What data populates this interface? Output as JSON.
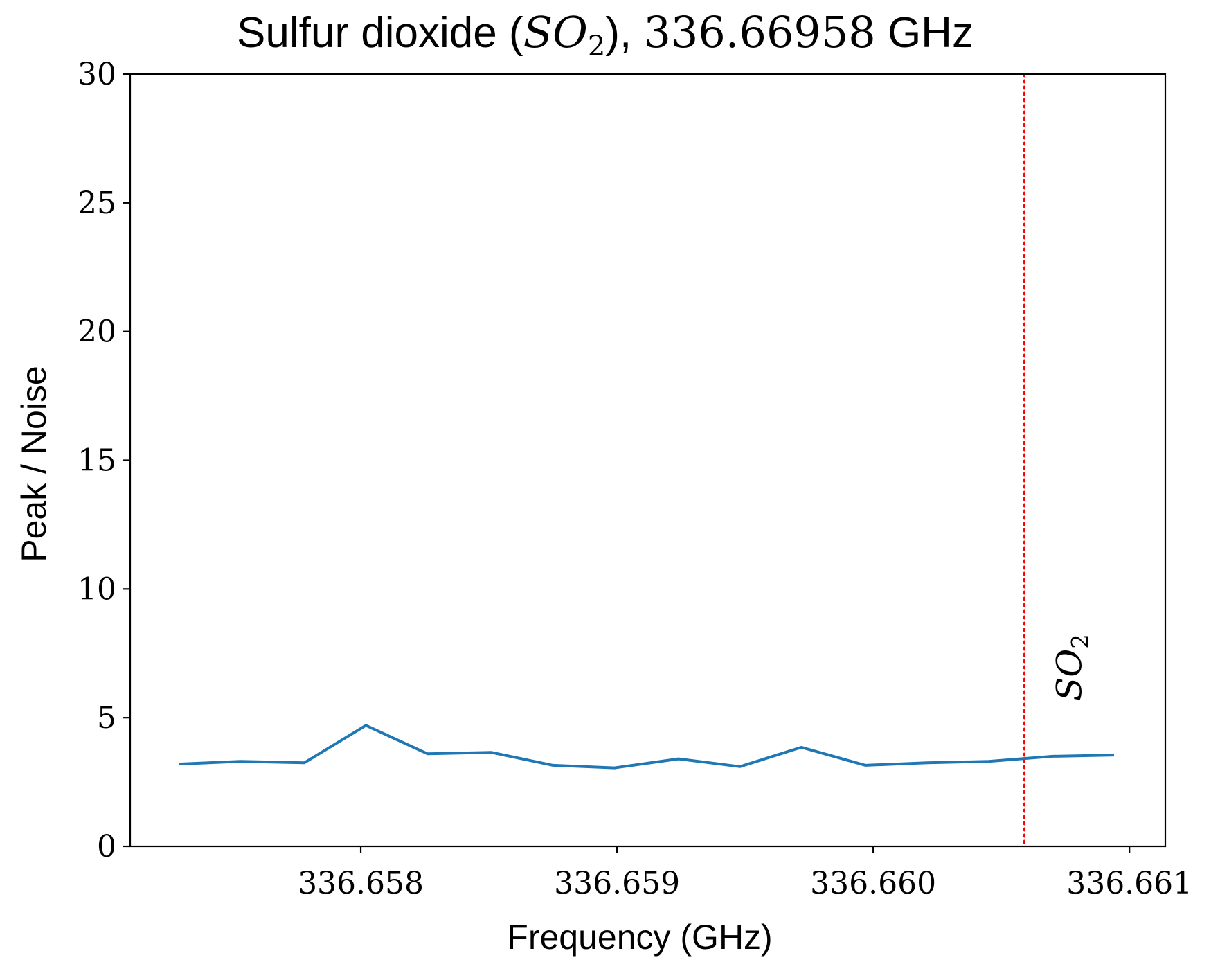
{
  "chart_data": {
    "type": "line",
    "title": {
      "prefix": "Sulfur dioxide (",
      "species": "SO",
      "species_sub": "2",
      "middle": "), ",
      "frequency": "336.66958",
      "suffix": " GHz"
    },
    "xlabel": "Frequency (GHz)",
    "ylabel": "Peak / Noise",
    "xlim": [
      336.6571,
      336.66114
    ],
    "ylim": [
      0,
      30
    ],
    "x_ticks": [
      {
        "value": 336.658,
        "label": "336.658"
      },
      {
        "value": 336.659,
        "label": "336.659"
      },
      {
        "value": 336.66,
        "label": "336.660"
      },
      {
        "value": 336.661,
        "label": "336.661"
      }
    ],
    "y_ticks": [
      {
        "value": 0,
        "label": "0"
      },
      {
        "value": 5,
        "label": "5"
      },
      {
        "value": 10,
        "label": "10"
      },
      {
        "value": 15,
        "label": "15"
      },
      {
        "value": 20,
        "label": "20"
      },
      {
        "value": 25,
        "label": "25"
      },
      {
        "value": 30,
        "label": "30"
      }
    ],
    "grid": false,
    "series": [
      {
        "color": "#1f77b4",
        "x": [
          336.65729,
          336.65753,
          336.65778,
          336.65802,
          336.65826,
          336.65851,
          336.65875,
          336.65899,
          336.65924,
          336.65948,
          336.65972,
          336.65997,
          336.66021,
          336.66045,
          336.6607,
          336.66094
        ],
        "y": [
          3.2,
          3.3,
          3.25,
          4.7,
          3.6,
          3.65,
          3.15,
          3.05,
          3.4,
          3.1,
          3.85,
          3.15,
          3.25,
          3.3,
          3.5,
          3.55
        ]
      }
    ],
    "annotations": [
      {
        "type": "vline",
        "x": 336.66059,
        "color": "#ff0000",
        "style": "dotted",
        "label": "SO",
        "label_sub": "2"
      }
    ]
  }
}
